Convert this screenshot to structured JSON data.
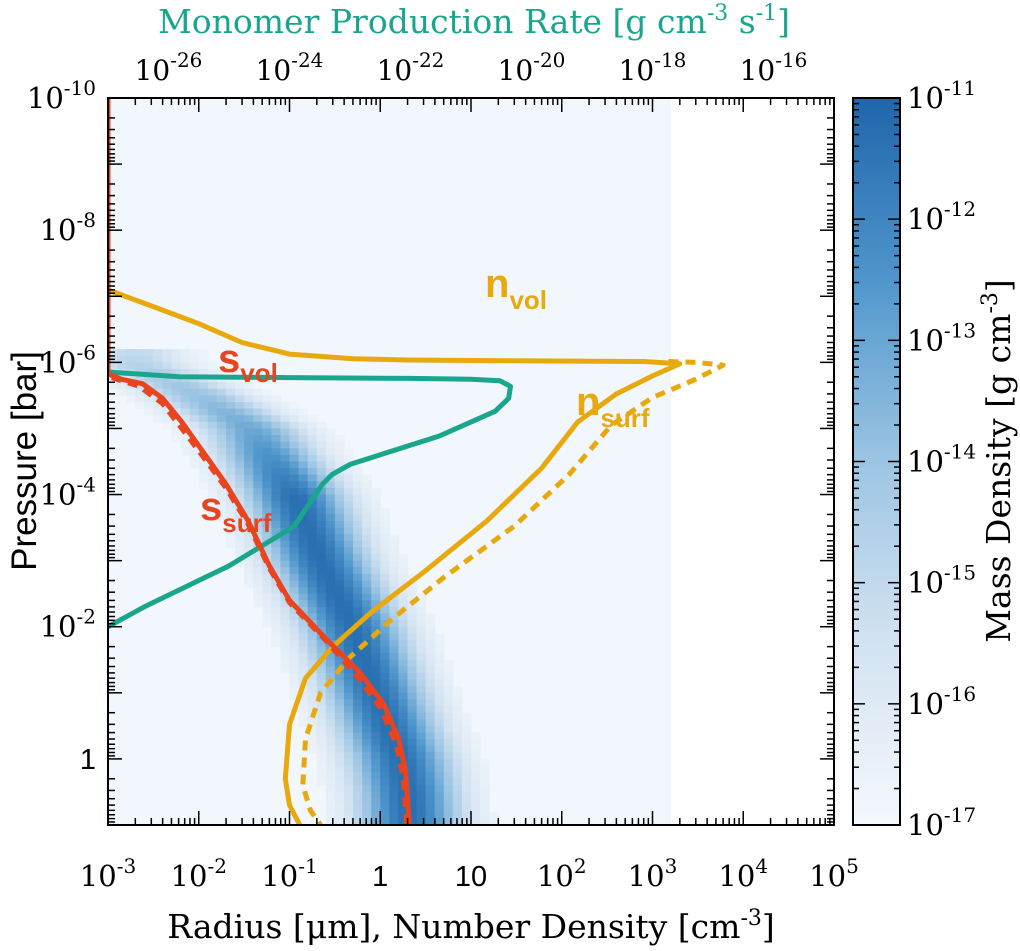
{
  "chart_data": {
    "type": "line",
    "title": "Monomer Production Rate [g cm-3 s-1]",
    "top_axis": {
      "label_main": "Monomer Production Rate [g cm",
      "label_exp1": "-3",
      "label_mid": " s",
      "label_exp2": "-1",
      "label_end": "]",
      "scale": "log",
      "range": [
        1e-27,
        1e-15
      ],
      "tick_base": "10",
      "ticks": [
        {
          "exp": -26,
          "text": "-26"
        },
        {
          "exp": -24,
          "text": "-24"
        },
        {
          "exp": -22,
          "text": "-22"
        },
        {
          "exp": -20,
          "text": "-20"
        },
        {
          "exp": -18,
          "text": "-18"
        },
        {
          "exp": -16,
          "text": "-16"
        }
      ]
    },
    "x_axis": {
      "label_main": "Radius [μm], Number Density [cm",
      "label_exp": "-3",
      "label_end": "]",
      "scale": "log",
      "range": [
        0.001,
        100000.0
      ],
      "tick_base": "10",
      "ticks": [
        {
          "exp": -3,
          "base": "10",
          "sup": "-3"
        },
        {
          "exp": -2,
          "base": "10",
          "sup": "-2"
        },
        {
          "exp": -1,
          "base": "10",
          "sup": "-1"
        },
        {
          "exp": 0,
          "base": "1",
          "sup": ""
        },
        {
          "exp": 1,
          "base": "10",
          "sup": ""
        },
        {
          "exp": 2,
          "base": "10",
          "sup": "2"
        },
        {
          "exp": 3,
          "base": "10",
          "sup": "3"
        },
        {
          "exp": 4,
          "base": "10",
          "sup": "4"
        },
        {
          "exp": 5,
          "base": "10",
          "sup": "5"
        }
      ]
    },
    "y_axis": {
      "label": "Pressure [bar]",
      "scale": "log",
      "range": [
        1e-10,
        10
      ],
      "inverted": true,
      "tick_base": "10",
      "ticks": [
        {
          "exp": -10,
          "base": "10",
          "sup": "-10"
        },
        {
          "exp": -8,
          "base": "10",
          "sup": "-8"
        },
        {
          "exp": -6,
          "base": "10",
          "sup": "-6"
        },
        {
          "exp": -4,
          "base": "10",
          "sup": "-4"
        },
        {
          "exp": -2,
          "base": "10",
          "sup": "-2"
        },
        {
          "exp": 0,
          "base": "1",
          "sup": ""
        }
      ]
    },
    "colorbar": {
      "label_main": "Mass Density [g cm",
      "label_exp": "-3",
      "label_end": "]",
      "scale": "log",
      "range": [
        1e-17,
        1e-11
      ],
      "colors": [
        "#f4f8fc",
        "#d3e3f2",
        "#9cc5e3",
        "#4f96cc",
        "#1f66ab"
      ],
      "ticks": [
        {
          "exp": -11,
          "text": "-11"
        },
        {
          "exp": -12,
          "text": "-12"
        },
        {
          "exp": -13,
          "text": "-13"
        },
        {
          "exp": -14,
          "text": "-14"
        },
        {
          "exp": -15,
          "text": "-15"
        },
        {
          "exp": -16,
          "text": "-16"
        },
        {
          "exp": -17,
          "text": "-17"
        }
      ]
    },
    "heatmap": {
      "background_color": "#f2f7fd",
      "background_extent": {
        "x": [
          0.001,
          1600
        ],
        "y": [
          1e-10,
          10
        ]
      },
      "band_center_log_r": [
        [
          -6,
          -2.72
        ],
        [
          -5.5,
          -2.0
        ],
        [
          -5,
          -1.42
        ],
        [
          -4,
          -0.95
        ],
        [
          -3,
          -0.66
        ],
        [
          -2,
          -0.31
        ],
        [
          -1,
          -0.05
        ],
        [
          0,
          0.22
        ],
        [
          0.5,
          0.3
        ],
        [
          1,
          0.33
        ]
      ],
      "band_halfwidth_dex": 0.6,
      "band_top_log_p": -6.2,
      "band_peak_log_density": -11.3
    },
    "series": [
      {
        "name": "s_vol",
        "label_main": "s",
        "label_sub": "vol",
        "axis": "bottom",
        "color": "#e8441f",
        "style": "solid",
        "points": [
          [
            0.001,
            1e-10
          ],
          [
            0.001,
            4e-08
          ],
          [
            0.001,
            1.5e-06
          ],
          [
            0.0014,
            1.8e-06
          ],
          [
            0.0024,
            2.1e-06
          ],
          [
            0.004,
            3.5e-06
          ],
          [
            0.0065,
            8e-06
          ],
          [
            0.011,
            2.2e-05
          ],
          [
            0.02,
            7e-05
          ],
          [
            0.035,
            0.00025
          ],
          [
            0.06,
            0.0012
          ],
          [
            0.1,
            0.004
          ],
          [
            0.25,
            0.015
          ],
          [
            0.6,
            0.05
          ],
          [
            1.1,
            0.15
          ],
          [
            1.6,
            0.5
          ],
          [
            1.9,
            1.5
          ],
          [
            2.0,
            4
          ],
          [
            2.1,
            10
          ]
        ]
      },
      {
        "name": "s_surf",
        "label_main": "s",
        "label_sub": "surf",
        "axis": "bottom",
        "color": "#e8441f",
        "style": "dashed",
        "points": [
          [
            0.0011,
            1.7e-06
          ],
          [
            0.0022,
            2.3e-06
          ],
          [
            0.004,
            4.2e-06
          ],
          [
            0.0065,
            1e-05
          ],
          [
            0.011,
            2.6e-05
          ],
          [
            0.02,
            8e-05
          ],
          [
            0.035,
            0.00028
          ],
          [
            0.06,
            0.0013
          ],
          [
            0.1,
            0.0043
          ],
          [
            0.25,
            0.016
          ],
          [
            0.55,
            0.055
          ],
          [
            1.0,
            0.17
          ],
          [
            1.5,
            0.6
          ],
          [
            1.8,
            2
          ],
          [
            1.95,
            10
          ]
        ]
      },
      {
        "name": "n_vol",
        "label_main": "n",
        "label_sub": "vol",
        "axis": "bottom",
        "color": "#e8a90e",
        "style": "solid",
        "points": [
          [
            0.001,
            8e-08
          ],
          [
            0.003,
            1.4e-07
          ],
          [
            0.01,
            2.6e-07
          ],
          [
            0.03,
            5e-07
          ],
          [
            0.1,
            7.5e-07
          ],
          [
            0.5,
            8.8e-07
          ],
          [
            2,
            9.2e-07
          ],
          [
            50,
            9.5e-07
          ],
          [
            800,
            9.7e-07
          ],
          [
            2000,
            1.05e-06
          ],
          [
            1000,
            1.6e-06
          ],
          [
            400,
            3e-06
          ],
          [
            150,
            8e-06
          ],
          [
            60,
            4e-05
          ],
          [
            15,
            0.00025
          ],
          [
            3,
            0.0015
          ],
          [
            0.8,
            0.006
          ],
          [
            0.3,
            0.02
          ],
          [
            0.15,
            0.06
          ],
          [
            0.1,
            0.3
          ],
          [
            0.09,
            2
          ],
          [
            0.1,
            5
          ],
          [
            0.13,
            10
          ]
        ]
      },
      {
        "name": "n_surf",
        "label_main": "n",
        "label_sub": "surf",
        "axis": "bottom",
        "color": "#e8a90e",
        "style": "dashed",
        "points": [
          [
            1500,
            9.7e-07
          ],
          [
            3000,
            1e-06
          ],
          [
            6000,
            1.1e-06
          ],
          [
            3000,
            1.8e-06
          ],
          [
            1000,
            3.4e-06
          ],
          [
            350,
            9e-06
          ],
          [
            120,
            5e-05
          ],
          [
            30,
            0.0003
          ],
          [
            5,
            0.0018
          ],
          [
            1.3,
            0.008
          ],
          [
            0.45,
            0.03
          ],
          [
            0.22,
            0.1
          ],
          [
            0.15,
            0.5
          ],
          [
            0.14,
            2.5
          ],
          [
            0.17,
            6
          ],
          [
            0.22,
            10
          ]
        ]
      },
      {
        "name": "monomer_production",
        "label_main": "",
        "label_sub": "",
        "axis": "top",
        "color": "#1aa68c",
        "style": "solid",
        "points": [
          [
            1e-27,
            1.4e-06
          ],
          [
            1.5e-26,
            1.65e-06
          ],
          [
            1e-24,
            1.7e-06
          ],
          [
            1e-22,
            1.75e-06
          ],
          [
            1e-21,
            1.8e-06
          ],
          [
            3e-21,
            1.9e-06
          ],
          [
            4.5e-21,
            2.3e-06
          ],
          [
            4.2e-21,
            3.5e-06
          ],
          [
            2.5e-21,
            5.5e-06
          ],
          [
            3e-22,
            1.3e-05
          ],
          [
            1e-23,
            3.5e-05
          ],
          [
            5e-24,
            5e-05
          ],
          [
            3.5e-24,
            7e-05
          ],
          [
            2.5e-24,
            0.00011
          ],
          [
            1.2e-24,
            0.0003
          ],
          [
            1e-25,
            0.0012
          ],
          [
            4e-27,
            0.005
          ],
          [
            1e-27,
            0.01
          ]
        ]
      }
    ],
    "annotations": [
      {
        "series": "n_vol",
        "main": "n",
        "sub": "vol",
        "color": "#e8a90e"
      },
      {
        "series": "n_surf",
        "main": "n",
        "sub": "surf",
        "color": "#e8a90e"
      },
      {
        "series": "s_vol",
        "main": "s",
        "sub": "vol",
        "color": "#e8441f"
      },
      {
        "series": "s_surf",
        "main": "s",
        "sub": "surf",
        "color": "#e8441f"
      }
    ]
  }
}
